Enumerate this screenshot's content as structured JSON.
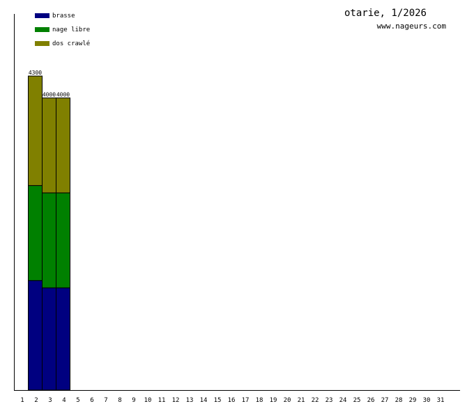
{
  "chart_data": {
    "type": "bar",
    "stacked": true,
    "title": "otarie, 1/2026",
    "subtitle": "www.nageurs.com",
    "x": [
      1,
      2,
      3,
      4,
      5,
      6,
      7,
      8,
      9,
      10,
      11,
      12,
      13,
      14,
      15,
      16,
      17,
      18,
      19,
      20,
      21,
      22,
      23,
      24,
      25,
      26,
      27,
      28,
      29,
      30,
      31
    ],
    "ylim": [
      0,
      5150
    ],
    "grid": false,
    "legend_position": "top-left",
    "series": [
      {
        "name": "brasse",
        "color": "#000080",
        "values": [
          0,
          1500,
          1400,
          1400,
          0,
          0,
          0,
          0,
          0,
          0,
          0,
          0,
          0,
          0,
          0,
          0,
          0,
          0,
          0,
          0,
          0,
          0,
          0,
          0,
          0,
          0,
          0,
          0,
          0,
          0,
          0
        ]
      },
      {
        "name": "nage libre",
        "color": "#008000",
        "values": [
          0,
          1300,
          1300,
          1300,
          0,
          0,
          0,
          0,
          0,
          0,
          0,
          0,
          0,
          0,
          0,
          0,
          0,
          0,
          0,
          0,
          0,
          0,
          0,
          0,
          0,
          0,
          0,
          0,
          0,
          0,
          0
        ]
      },
      {
        "name": "dos crawlé",
        "color": "#808000",
        "values": [
          0,
          1500,
          1300,
          1300,
          0,
          0,
          0,
          0,
          0,
          0,
          0,
          0,
          0,
          0,
          0,
          0,
          0,
          0,
          0,
          0,
          0,
          0,
          0,
          0,
          0,
          0,
          0,
          0,
          0,
          0,
          0
        ]
      }
    ],
    "totals": [
      "",
      "4300",
      "4000",
      "4000",
      "",
      "",
      "",
      "",
      "",
      "",
      "",
      "",
      "",
      "",
      "",
      "",
      "",
      "",
      "",
      "",
      "",
      "",
      "",
      "",
      "",
      "",
      "",
      "",
      "",
      "",
      ""
    ]
  }
}
